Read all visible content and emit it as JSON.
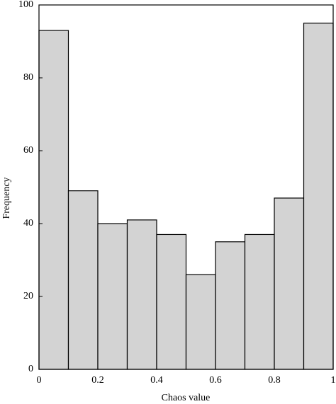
{
  "chart_data": {
    "type": "histogram",
    "x_label": "Chaos value",
    "y_label": "Frequency",
    "bins": [
      0,
      0.1,
      0.2,
      0.3,
      0.4,
      0.5,
      0.6,
      0.7,
      0.8,
      0.9,
      1
    ],
    "values": [
      93,
      49,
      40,
      41,
      37,
      26,
      35,
      37,
      47,
      95
    ],
    "color": "#d3d3d3",
    "xlim": [
      0,
      1
    ],
    "xticks": [
      0,
      0.2,
      0.4,
      0.6,
      0.8,
      1
    ],
    "ylim": [
      0,
      100
    ],
    "yticks": [
      0,
      20,
      40,
      60,
      80,
      100
    ]
  }
}
